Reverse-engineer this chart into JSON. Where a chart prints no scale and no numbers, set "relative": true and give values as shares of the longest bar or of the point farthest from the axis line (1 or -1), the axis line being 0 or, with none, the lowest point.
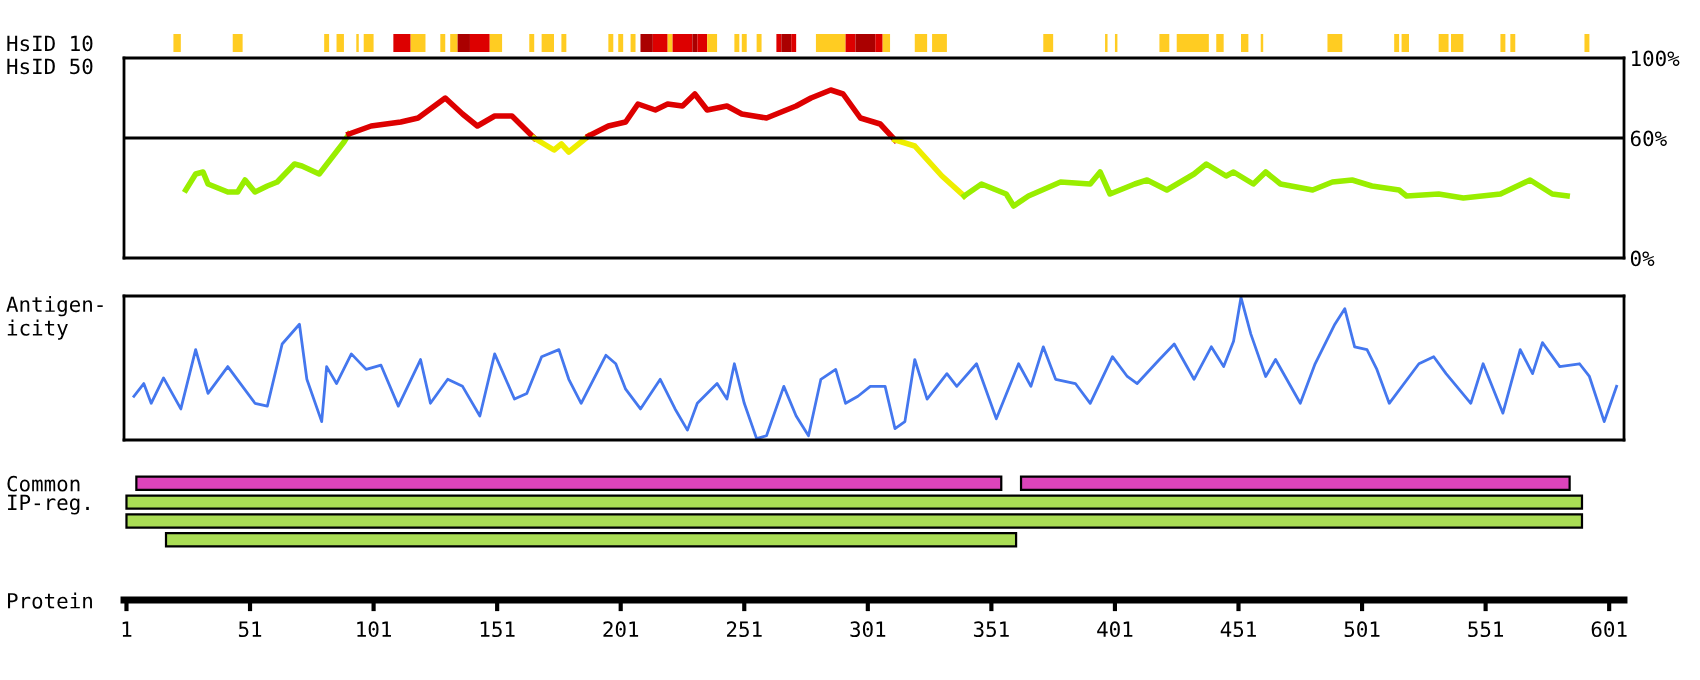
{
  "chart_data": [
    {
      "type": "bar",
      "orientation": "horizontal",
      "categories": [
        "HsID 10"
      ],
      "xlim": [
        0,
        607
      ],
      "tick_labels": "y",
      "series": [
        {
          "color": "#ffcc22",
          "base": [
            20
          ],
          "values": [
            3
          ]
        },
        {
          "color": "#ffcc22",
          "base": [
            44
          ],
          "values": [
            4
          ]
        },
        {
          "color": "#ffcc22",
          "base": [
            81
          ],
          "values": [
            2
          ]
        },
        {
          "color": "#ffcc22",
          "base": [
            86
          ],
          "values": [
            3
          ]
        },
        {
          "color": "#ffcc22",
          "base": [
            94
          ],
          "values": [
            1
          ]
        },
        {
          "color": "#ffcc22",
          "base": [
            97
          ],
          "values": [
            4
          ]
        },
        {
          "color": "#dd0000",
          "base": [
            109
          ],
          "values": [
            7
          ]
        },
        {
          "color": "#ffcc22",
          "base": [
            116
          ],
          "values": [
            6
          ]
        },
        {
          "color": "#ffcc22",
          "base": [
            128
          ],
          "values": [
            2
          ]
        },
        {
          "color": "#ffcc22",
          "base": [
            132
          ],
          "values": [
            3
          ]
        },
        {
          "color": "#aa0000",
          "base": [
            135
          ],
          "values": [
            5
          ]
        },
        {
          "color": "#dd0000",
          "base": [
            140
          ],
          "values": [
            8
          ]
        },
        {
          "color": "#ffcc22",
          "base": [
            148
          ],
          "values": [
            5
          ]
        },
        {
          "color": "#ffcc22",
          "base": [
            164
          ],
          "values": [
            2
          ]
        },
        {
          "color": "#ffcc22",
          "base": [
            169
          ],
          "values": [
            5
          ]
        },
        {
          "color": "#ffcc22",
          "base": [
            177
          ],
          "values": [
            2
          ]
        },
        {
          "color": "#ffcc22",
          "base": [
            196
          ],
          "values": [
            2
          ]
        },
        {
          "color": "#ffcc22",
          "base": [
            200
          ],
          "values": [
            2
          ]
        },
        {
          "color": "#ffcc22",
          "base": [
            205
          ],
          "values": [
            2
          ]
        },
        {
          "color": "#aa0000",
          "base": [
            209
          ],
          "values": [
            5
          ]
        },
        {
          "color": "#dd0000",
          "base": [
            214
          ],
          "values": [
            6
          ]
        },
        {
          "color": "#ffcc22",
          "base": [
            220
          ],
          "values": [
            2
          ]
        },
        {
          "color": "#dd0000",
          "base": [
            222
          ],
          "values": [
            8
          ]
        },
        {
          "color": "#aa0000",
          "base": [
            230
          ],
          "values": [
            2
          ]
        },
        {
          "color": "#dd0000",
          "base": [
            232
          ],
          "values": [
            4
          ]
        },
        {
          "color": "#ffcc22",
          "base": [
            236
          ],
          "values": [
            4
          ]
        },
        {
          "color": "#ffcc22",
          "base": [
            247
          ],
          "values": [
            2
          ]
        },
        {
          "color": "#ffcc22",
          "base": [
            250
          ],
          "values": [
            2
          ]
        },
        {
          "color": "#ffcc22",
          "base": [
            256
          ],
          "values": [
            2
          ]
        },
        {
          "color": "#dd0000",
          "base": [
            264
          ],
          "values": [
            2
          ]
        },
        {
          "color": "#aa0000",
          "base": [
            266
          ],
          "values": [
            4
          ]
        },
        {
          "color": "#dd0000",
          "base": [
            270
          ],
          "values": [
            2
          ]
        },
        {
          "color": "#ffcc22",
          "base": [
            280
          ],
          "values": [
            12
          ]
        },
        {
          "color": "#dd0000",
          "base": [
            292
          ],
          "values": [
            4
          ]
        },
        {
          "color": "#aa0000",
          "base": [
            296
          ],
          "values": [
            8
          ]
        },
        {
          "color": "#dd0000",
          "base": [
            304
          ],
          "values": [
            3
          ]
        },
        {
          "color": "#ffcc22",
          "base": [
            307
          ],
          "values": [
            3
          ]
        },
        {
          "color": "#ffcc22",
          "base": [
            320
          ],
          "values": [
            5
          ]
        },
        {
          "color": "#ffcc22",
          "base": [
            327
          ],
          "values": [
            6
          ]
        },
        {
          "color": "#ffcc22",
          "base": [
            372
          ],
          "values": [
            4
          ]
        },
        {
          "color": "#ffcc22",
          "base": [
            397
          ],
          "values": [
            1
          ]
        },
        {
          "color": "#ffcc22",
          "base": [
            401
          ],
          "values": [
            1
          ]
        },
        {
          "color": "#ffcc22",
          "base": [
            419
          ],
          "values": [
            4
          ]
        },
        {
          "color": "#ffcc22",
          "base": [
            426
          ],
          "values": [
            13
          ]
        },
        {
          "color": "#ffcc22",
          "base": [
            442
          ],
          "values": [
            3
          ]
        },
        {
          "color": "#ffcc22",
          "base": [
            452
          ],
          "values": [
            3
          ]
        },
        {
          "color": "#ffcc22",
          "base": [
            460
          ],
          "values": [
            1
          ]
        },
        {
          "color": "#ffcc22",
          "base": [
            487
          ],
          "values": [
            6
          ]
        },
        {
          "color": "#ffcc22",
          "base": [
            514
          ],
          "values": [
            2
          ]
        },
        {
          "color": "#ffcc22",
          "base": [
            517
          ],
          "values": [
            3
          ]
        },
        {
          "color": "#ffcc22",
          "base": [
            532
          ],
          "values": [
            4
          ]
        },
        {
          "color": "#ffcc22",
          "base": [
            537
          ],
          "values": [
            5
          ]
        },
        {
          "color": "#ffcc22",
          "base": [
            557
          ],
          "values": [
            2
          ]
        },
        {
          "color": "#ffcc22",
          "base": [
            561
          ],
          "values": [
            2
          ]
        },
        {
          "color": "#ffcc22",
          "base": [
            591
          ],
          "values": [
            2
          ]
        }
      ]
    },
    {
      "type": "line",
      "ylabel": "HsID 50",
      "xlim": [
        0,
        607
      ],
      "ylim": [
        0,
        100
      ],
      "yticks": [
        {
          "value": 0,
          "label": "0%"
        },
        {
          "value": 60,
          "label": "60%"
        },
        {
          "value": 100,
          "label": "100%"
        }
      ],
      "tick_labels": "y",
      "ref_lines": [
        {
          "axis": "y",
          "value": 60,
          "color": "#000000"
        }
      ],
      "series": [
        {
          "color": "#99ee00",
          "x": [
            25,
            29,
            32,
            34,
            42,
            46,
            49,
            53,
            58,
            62,
            69,
            72,
            79,
            84,
            89,
            91
          ],
          "values": [
            34,
            42,
            43,
            37,
            33,
            33,
            39,
            33,
            36,
            38,
            47,
            46,
            42,
            50,
            58,
            62
          ]
        },
        {
          "color": "#dd0000",
          "x": [
            91,
            100,
            112,
            119,
            130,
            137,
            143,
            150,
            157,
            166
          ],
          "values": [
            62,
            66,
            68,
            70,
            80,
            72,
            66,
            71,
            71,
            60
          ]
        },
        {
          "color": "#eeee00",
          "x": [
            166,
            174,
            177,
            180,
            185,
            188
          ],
          "values": [
            60,
            54,
            57,
            53,
            58,
            61
          ]
        },
        {
          "color": "#dd0000",
          "x": [
            188,
            196,
            203,
            208,
            215,
            220,
            226,
            231,
            236,
            244,
            250,
            260,
            272,
            278,
            286,
            291,
            298,
            306,
            312
          ],
          "values": [
            61,
            66,
            68,
            77,
            74,
            77,
            76,
            82,
            74,
            76,
            72,
            70,
            76,
            80,
            84,
            82,
            70,
            67,
            59
          ]
        },
        {
          "color": "#eeee00",
          "x": [
            312,
            320,
            331,
            340
          ],
          "values": [
            59,
            56,
            41,
            31
          ]
        },
        {
          "color": "#99ee00",
          "x": [
            340,
            347,
            357,
            360,
            366,
            379,
            391,
            395,
            399,
            409,
            414,
            422,
            433,
            438,
            446,
            449,
            457,
            462,
            468,
            481,
            489,
            497,
            505,
            516,
            519,
            532,
            542,
            557,
            569,
            578,
            584
          ],
          "values": [
            31,
            37,
            32,
            26,
            31,
            38,
            37,
            43,
            32,
            37,
            39,
            34,
            42,
            47,
            41,
            43,
            37,
            43,
            37,
            34,
            38,
            39,
            36,
            34,
            31,
            32,
            30,
            32,
            39,
            32,
            31
          ]
        }
      ]
    },
    {
      "type": "line",
      "ylabel": "Antigen-\nicity",
      "relative": true,
      "xlim": [
        0,
        607
      ],
      "tick_labels": false,
      "series": [
        {
          "color": "#4477ee",
          "x": [
            4,
            8,
            11,
            16,
            23,
            29,
            34,
            42,
            53,
            58,
            64,
            71,
            74,
            80,
            82,
            86,
            92,
            98,
            104,
            111,
            120,
            124,
            131,
            137,
            144,
            150,
            158,
            163,
            169,
            176,
            180,
            185,
            195,
            199,
            203,
            209,
            217,
            223,
            228,
            232,
            240,
            244,
            247,
            251,
            256,
            260,
            267,
            272,
            277,
            282,
            288,
            292,
            297,
            302,
            308,
            312,
            316,
            320,
            325,
            333,
            337,
            345,
            353,
            362,
            367,
            372,
            377,
            385,
            391,
            400,
            406,
            410,
            419,
            425,
            433,
            440,
            445,
            449,
            452,
            456,
            462,
            466,
            476,
            482,
            490,
            494,
            498,
            503,
            507,
            512,
            524,
            530,
            535,
            545,
            550,
            558,
            565,
            570,
            574,
            581,
            589,
            593,
            599,
            604
          ],
          "values": [
            0.3,
            0.39,
            0.25,
            0.43,
            0.21,
            0.63,
            0.32,
            0.51,
            0.25,
            0.23,
            0.67,
            0.81,
            0.42,
            0.12,
            0.51,
            0.39,
            0.6,
            0.49,
            0.52,
            0.23,
            0.56,
            0.25,
            0.42,
            0.37,
            0.16,
            0.6,
            0.28,
            0.32,
            0.58,
            0.63,
            0.42,
            0.25,
            0.59,
            0.53,
            0.35,
            0.21,
            0.42,
            0.21,
            0.06,
            0.25,
            0.39,
            0.28,
            0.53,
            0.25,
            0.0,
            0.02,
            0.37,
            0.16,
            0.02,
            0.42,
            0.49,
            0.25,
            0.3,
            0.37,
            0.37,
            0.07,
            0.12,
            0.56,
            0.28,
            0.46,
            0.37,
            0.53,
            0.14,
            0.53,
            0.37,
            0.65,
            0.42,
            0.39,
            0.25,
            0.58,
            0.44,
            0.39,
            0.56,
            0.67,
            0.42,
            0.65,
            0.51,
            0.69,
            1.0,
            0.74,
            0.44,
            0.56,
            0.25,
            0.53,
            0.81,
            0.92,
            0.65,
            0.63,
            0.49,
            0.25,
            0.53,
            0.58,
            0.46,
            0.25,
            0.53,
            0.18,
            0.63,
            0.46,
            0.68,
            0.51,
            0.53,
            0.44,
            0.12,
            0.37
          ]
        }
      ]
    },
    {
      "type": "bar",
      "orientation": "horizontal",
      "categories": [
        "Common",
        "IP-reg.",
        null,
        null
      ],
      "xlabel": "Protein",
      "xlim": [
        0,
        607
      ],
      "xticks": [
        1,
        51,
        101,
        151,
        201,
        251,
        301,
        351,
        401,
        451,
        501,
        551,
        601
      ],
      "series": [
        {
          "color": "#dd44bb",
          "base": [
            5,
            null,
            null,
            null
          ],
          "values": [
            350,
            null,
            null,
            null
          ]
        },
        {
          "color": "#aadd55",
          "base": [
            null,
            1,
            1,
            17
          ],
          "values": [
            null,
            589,
            589,
            344
          ]
        },
        {
          "color": "#dd44bb",
          "base": [
            363,
            null,
            null,
            null
          ],
          "values": [
            222,
            null,
            null,
            null
          ]
        }
      ]
    }
  ]
}
